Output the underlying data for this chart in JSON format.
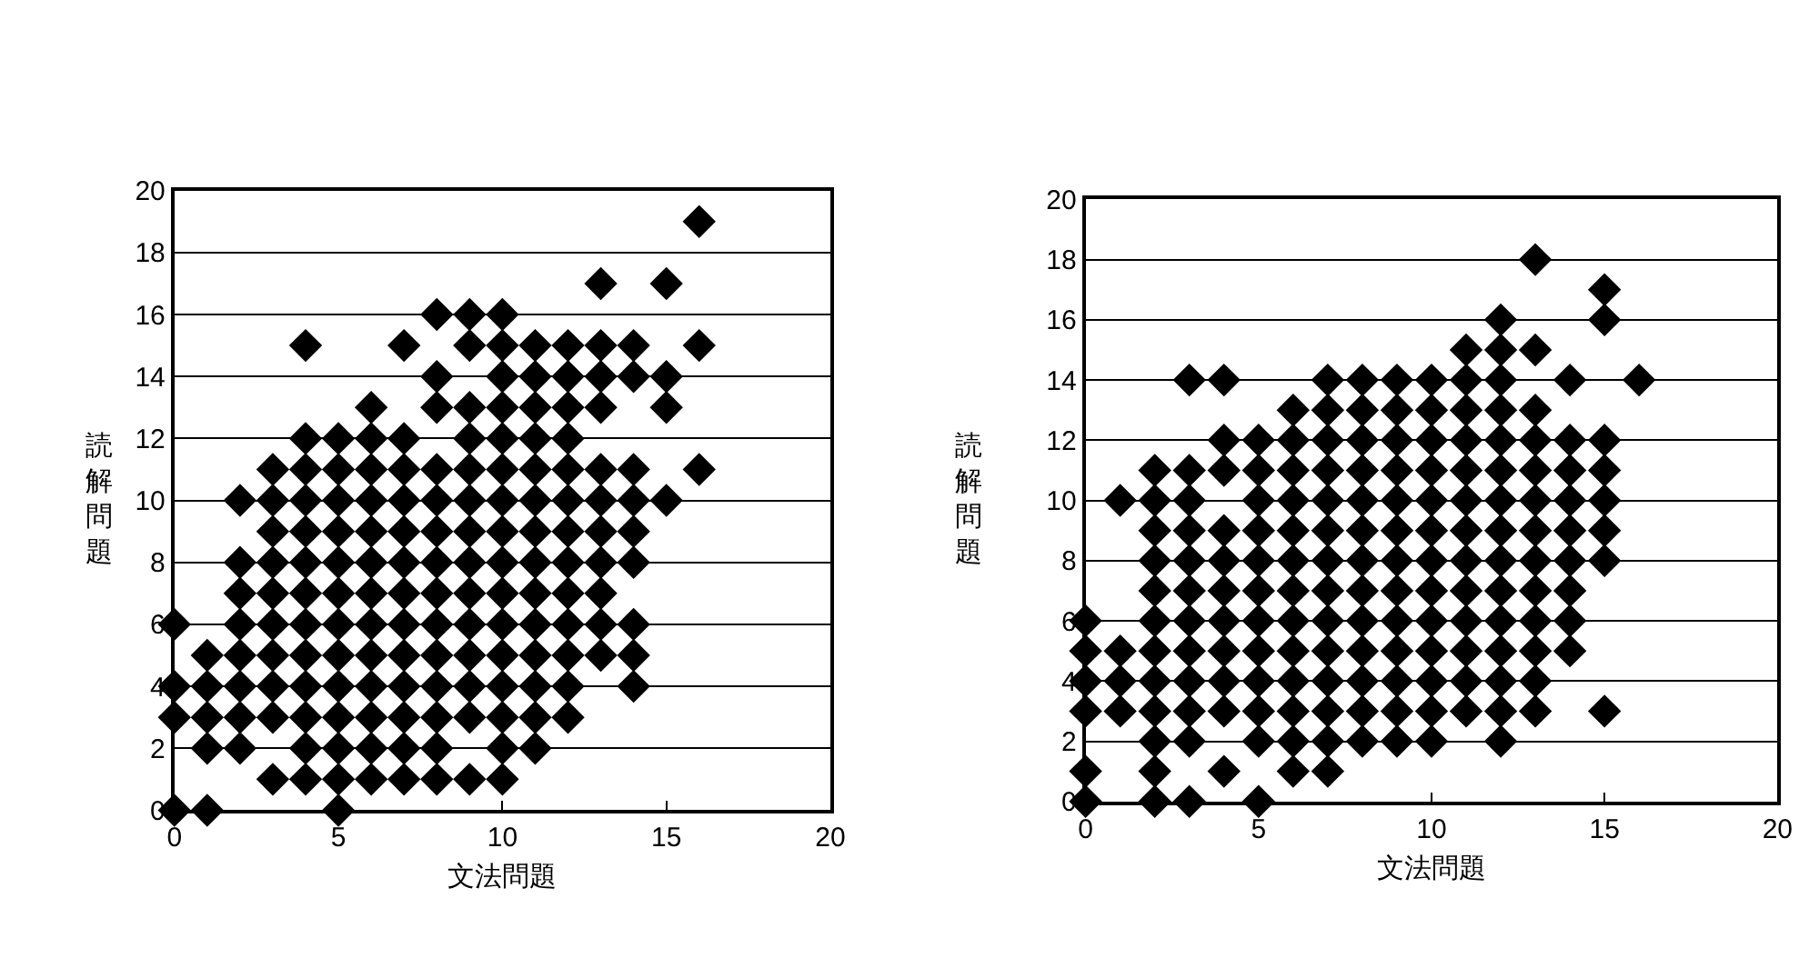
{
  "chart_data": [
    {
      "type": "scatter",
      "xlabel": "文法問題",
      "ylabel": "読解問題",
      "xlim": [
        0,
        20
      ],
      "xticks": [
        0,
        5,
        10,
        15,
        20
      ],
      "ylim": [
        0,
        20
      ],
      "yticks": [
        0,
        2,
        4,
        6,
        8,
        10,
        12,
        14,
        16,
        18,
        20
      ],
      "grid": "y",
      "marker": "diamond",
      "series": [
        {
          "color": "#000000",
          "x": [
            16,
            13,
            15,
            8,
            9,
            10,
            4,
            7,
            9,
            10,
            11,
            12,
            13,
            14,
            16,
            8,
            10,
            11,
            12,
            13,
            14,
            15,
            6,
            8,
            9,
            10,
            11,
            12,
            13,
            15,
            4,
            5,
            6,
            7,
            9,
            10,
            11,
            12,
            3,
            4,
            5,
            6,
            7,
            8,
            9,
            10,
            11,
            12,
            13,
            14,
            16,
            2,
            3,
            4,
            5,
            6,
            7,
            8,
            9,
            10,
            11,
            12,
            13,
            14,
            15,
            3,
            4,
            5,
            6,
            7,
            8,
            9,
            10,
            11,
            12,
            13,
            14,
            2,
            3,
            4,
            5,
            6,
            7,
            8,
            9,
            10,
            11,
            12,
            13,
            14,
            2,
            3,
            4,
            5,
            6,
            7,
            8,
            9,
            10,
            11,
            12,
            13,
            0,
            2,
            3,
            4,
            5,
            6,
            7,
            8,
            9,
            10,
            11,
            12,
            13,
            14,
            1,
            2,
            3,
            4,
            5,
            6,
            7,
            8,
            9,
            10,
            11,
            12,
            13,
            14,
            0,
            1,
            2,
            3,
            4,
            5,
            6,
            7,
            8,
            9,
            10,
            11,
            12,
            14,
            0,
            1,
            2,
            3,
            4,
            5,
            6,
            7,
            8,
            9,
            10,
            11,
            12,
            1,
            2,
            4,
            5,
            6,
            7,
            8,
            10,
            11,
            3,
            4,
            5,
            6,
            7,
            8,
            9,
            10,
            0,
            1,
            5
          ],
          "values": [
            19,
            17,
            17,
            16,
            16,
            16,
            15,
            15,
            15,
            15,
            15,
            15,
            15,
            15,
            15,
            14,
            14,
            14,
            14,
            14,
            14,
            14,
            13,
            13,
            13,
            13,
            13,
            13,
            13,
            13,
            12,
            12,
            12,
            12,
            12,
            12,
            12,
            12,
            11,
            11,
            11,
            11,
            11,
            11,
            11,
            11,
            11,
            11,
            11,
            11,
            11,
            10,
            10,
            10,
            10,
            10,
            10,
            10,
            10,
            10,
            10,
            10,
            10,
            10,
            10,
            9,
            9,
            9,
            9,
            9,
            9,
            9,
            9,
            9,
            9,
            9,
            9,
            8,
            8,
            8,
            8,
            8,
            8,
            8,
            8,
            8,
            8,
            8,
            8,
            8,
            7,
            7,
            7,
            7,
            7,
            7,
            7,
            7,
            7,
            7,
            7,
            7,
            6,
            6,
            6,
            6,
            6,
            6,
            6,
            6,
            6,
            6,
            6,
            6,
            6,
            6,
            5,
            5,
            5,
            5,
            5,
            5,
            5,
            5,
            5,
            5,
            5,
            5,
            5,
            5,
            4,
            4,
            4,
            4,
            4,
            4,
            4,
            4,
            4,
            4,
            4,
            4,
            4,
            4,
            3,
            3,
            3,
            3,
            3,
            3,
            3,
            3,
            3,
            3,
            3,
            3,
            3,
            2,
            2,
            2,
            2,
            2,
            2,
            2,
            2,
            2,
            1,
            1,
            1,
            1,
            1,
            1,
            1,
            1,
            0,
            0,
            0
          ]
        }
      ]
    },
    {
      "type": "scatter",
      "xlabel": "文法問題",
      "ylabel": "読解問題",
      "xlim": [
        0,
        20
      ],
      "xticks": [
        0,
        5,
        10,
        15,
        20
      ],
      "ylim": [
        0,
        20
      ],
      "yticks": [
        0,
        2,
        4,
        6,
        8,
        10,
        12,
        14,
        16,
        18,
        20
      ],
      "grid": "y",
      "marker": "diamond",
      "series": [
        {
          "color": "#000000",
          "x": [
            13,
            15,
            12,
            15,
            11,
            12,
            13,
            3,
            4,
            7,
            8,
            9,
            10,
            11,
            12,
            14,
            16,
            6,
            7,
            8,
            9,
            10,
            11,
            12,
            13,
            4,
            5,
            6,
            7,
            8,
            9,
            10,
            11,
            12,
            13,
            14,
            15,
            2,
            3,
            4,
            5,
            6,
            7,
            8,
            9,
            10,
            11,
            12,
            13,
            14,
            15,
            1,
            2,
            3,
            5,
            6,
            7,
            8,
            9,
            10,
            11,
            12,
            13,
            14,
            15,
            2,
            3,
            4,
            5,
            6,
            7,
            8,
            9,
            10,
            11,
            12,
            13,
            14,
            15,
            2,
            3,
            4,
            5,
            6,
            7,
            8,
            9,
            10,
            11,
            12,
            13,
            14,
            15,
            2,
            3,
            4,
            5,
            6,
            7,
            8,
            9,
            10,
            11,
            12,
            13,
            14,
            0,
            2,
            3,
            4,
            5,
            6,
            7,
            8,
            9,
            10,
            11,
            12,
            13,
            14,
            0,
            1,
            2,
            3,
            4,
            5,
            6,
            7,
            8,
            9,
            10,
            11,
            12,
            13,
            14,
            0,
            1,
            2,
            3,
            4,
            5,
            6,
            7,
            8,
            9,
            10,
            11,
            12,
            13,
            0,
            1,
            2,
            3,
            4,
            5,
            6,
            7,
            8,
            9,
            10,
            11,
            12,
            13,
            15,
            2,
            3,
            5,
            6,
            7,
            8,
            9,
            10,
            12,
            0,
            2,
            4,
            6,
            7,
            0,
            2,
            3,
            5
          ],
          "values": [
            18,
            17,
            16,
            16,
            15,
            15,
            15,
            14,
            14,
            14,
            14,
            14,
            14,
            14,
            14,
            14,
            14,
            13,
            13,
            13,
            13,
            13,
            13,
            13,
            13,
            12,
            12,
            12,
            12,
            12,
            12,
            12,
            12,
            12,
            12,
            12,
            12,
            11,
            11,
            11,
            11,
            11,
            11,
            11,
            11,
            11,
            11,
            11,
            11,
            11,
            11,
            10,
            10,
            10,
            10,
            10,
            10,
            10,
            10,
            10,
            10,
            10,
            10,
            10,
            10,
            9,
            9,
            9,
            9,
            9,
            9,
            9,
            9,
            9,
            9,
            9,
            9,
            9,
            9,
            8,
            8,
            8,
            8,
            8,
            8,
            8,
            8,
            8,
            8,
            8,
            8,
            8,
            8,
            7,
            7,
            7,
            7,
            7,
            7,
            7,
            7,
            7,
            7,
            7,
            7,
            7,
            6,
            6,
            6,
            6,
            6,
            6,
            6,
            6,
            6,
            6,
            6,
            6,
            6,
            6,
            5,
            5,
            5,
            5,
            5,
            5,
            5,
            5,
            5,
            5,
            5,
            5,
            5,
            5,
            5,
            4,
            4,
            4,
            4,
            4,
            4,
            4,
            4,
            4,
            4,
            4,
            4,
            4,
            4,
            3,
            3,
            3,
            3,
            3,
            3,
            3,
            3,
            3,
            3,
            3,
            3,
            3,
            3,
            3,
            2,
            2,
            2,
            2,
            2,
            2,
            2,
            2,
            2,
            1,
            1,
            1,
            1,
            1,
            0,
            0,
            0,
            0
          ]
        }
      ]
    }
  ]
}
